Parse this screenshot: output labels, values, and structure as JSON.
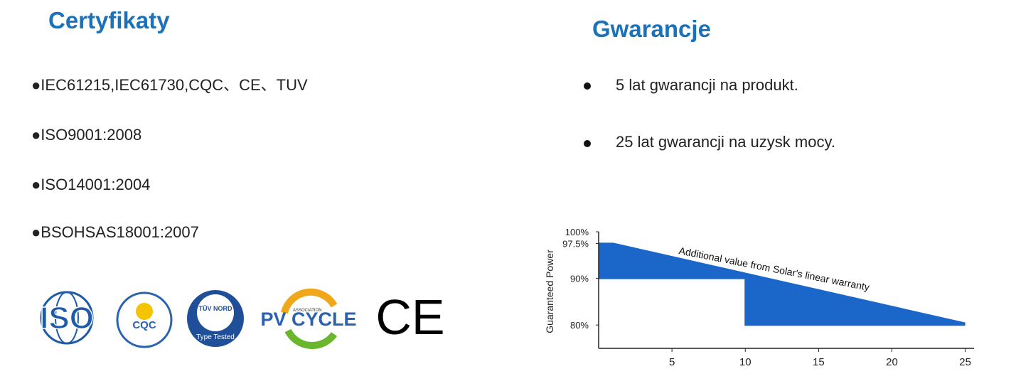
{
  "certificates": {
    "title": "Certyfikaty",
    "items": [
      "●IEC61215,IEC61730,CQC、CE、TUV",
      "●ISO9001:2008",
      "●ISO14001:2004",
      "●BSOHSAS18001:2007"
    ],
    "logos": {
      "iso": "ISO",
      "cqc": "CQC",
      "tuv": "TÜV NORD",
      "tuv_sub": "Type Tested",
      "pv_small": "ASSOCIATION",
      "pv": "PV CYCLE",
      "ce": "CE"
    }
  },
  "warranty": {
    "title": "Gwarancje",
    "items": [
      "5 lat gwarancji na produkt.",
      "25 lat gwarancji na uzysk mocy."
    ]
  },
  "chart_data": {
    "type": "area",
    "y_label": "Guaranteed Power",
    "annotation": "Additional value from Solar's linear warranty",
    "color": "#1a66c9",
    "series": [
      {
        "x": [
          0,
          1,
          25
        ],
        "values": [
          97.5,
          97.5,
          80.4
        ]
      },
      {
        "x": [
          0,
          10,
          10,
          25
        ],
        "values": [
          90,
          90,
          80,
          80
        ]
      }
    ],
    "xlim": [
      0,
      25.6
    ],
    "ylim": [
      75,
      100
    ],
    "xticks": [
      5,
      10,
      15,
      20,
      25
    ],
    "yticks": [
      {
        "value": 100,
        "label": "100%"
      },
      {
        "value": 97.5,
        "label": "97.5%"
      },
      {
        "value": 90,
        "label": "90%"
      },
      {
        "value": 80,
        "label": "80%"
      }
    ]
  }
}
